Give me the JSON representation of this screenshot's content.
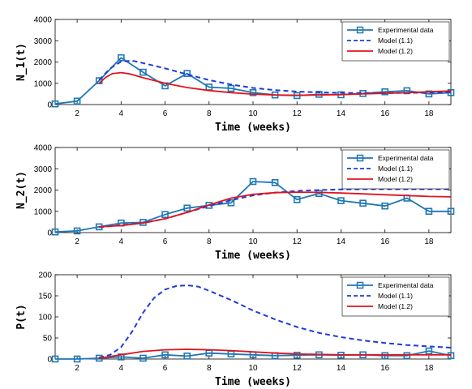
{
  "chart_data": [
    {
      "type": "line",
      "xlabel": "Time (weeks)",
      "ylabel": "N_1(t)",
      "xlim": [
        1,
        19
      ],
      "ylim": [
        0,
        4000
      ],
      "x_ticks": [
        2,
        4,
        6,
        8,
        10,
        12,
        14,
        16,
        18
      ],
      "y_ticks": [
        0,
        1000,
        2000,
        3000,
        4000
      ],
      "legend_position": "top-right",
      "grid": false,
      "series": [
        {
          "name": "Experimental data",
          "color": "#1f77b4",
          "style": "solid-square-markers",
          "x": [
            1,
            2,
            3,
            4,
            5,
            6,
            7,
            8,
            9,
            10,
            11,
            12,
            13,
            14,
            15,
            16,
            17,
            18,
            19
          ],
          "y": [
            30,
            160,
            1120,
            2200,
            1520,
            880,
            1460,
            820,
            760,
            560,
            450,
            420,
            480,
            460,
            520,
            600,
            650,
            500,
            560
          ]
        },
        {
          "name": "Model (1.1)",
          "color": "#1f3cd6",
          "style": "dashed",
          "x": [
            3,
            3.5,
            4,
            4.5,
            5,
            6,
            7,
            8,
            9,
            10,
            11,
            12,
            13,
            14,
            15,
            16,
            17,
            18,
            19
          ],
          "y": [
            1150,
            1700,
            2020,
            2060,
            1950,
            1700,
            1420,
            1150,
            940,
            780,
            680,
            610,
            570,
            550,
            540,
            540,
            550,
            560,
            580
          ]
        },
        {
          "name": "Model (1.2)",
          "color": "#e0141e",
          "style": "solid",
          "x": [
            3,
            3.3,
            3.6,
            4,
            4.4,
            5,
            6,
            7,
            8,
            9,
            10,
            11,
            12,
            13,
            14,
            15,
            16,
            17,
            18,
            19
          ],
          "y": [
            1000,
            1280,
            1450,
            1500,
            1440,
            1260,
            1000,
            800,
            660,
            560,
            490,
            450,
            440,
            450,
            470,
            500,
            530,
            560,
            600,
            640
          ]
        }
      ]
    },
    {
      "type": "line",
      "xlabel": "Time (weeks)",
      "ylabel": "N_2(t)",
      "xlim": [
        1,
        19
      ],
      "ylim": [
        0,
        4000
      ],
      "x_ticks": [
        2,
        4,
        6,
        8,
        10,
        12,
        14,
        16,
        18
      ],
      "y_ticks": [
        0,
        1000,
        2000,
        3000,
        4000
      ],
      "legend_position": "top-right",
      "grid": false,
      "series": [
        {
          "name": "Experimental data",
          "color": "#1f77b4",
          "style": "solid-square-markers",
          "x": [
            1,
            2,
            3,
            4,
            5,
            6,
            7,
            8,
            9,
            10,
            11,
            12,
            13,
            14,
            15,
            16,
            17,
            18,
            19
          ],
          "y": [
            30,
            80,
            270,
            450,
            480,
            850,
            1150,
            1280,
            1400,
            2400,
            2350,
            1550,
            1840,
            1500,
            1380,
            1250,
            1620,
            1000,
            1000
          ]
        },
        {
          "name": "Model (1.1)",
          "color": "#1f3cd6",
          "style": "dashed",
          "x": [
            3,
            4,
            5,
            6,
            7,
            8,
            9,
            10,
            11,
            12,
            13,
            14,
            15,
            16,
            17,
            18,
            19
          ],
          "y": [
            250,
            350,
            450,
            650,
            950,
            1250,
            1520,
            1750,
            1880,
            1960,
            2000,
            2030,
            2040,
            2040,
            2040,
            2040,
            2040
          ]
        },
        {
          "name": "Model (1.2)",
          "color": "#e0141e",
          "style": "solid",
          "x": [
            3,
            4,
            5,
            6,
            7,
            8,
            9,
            10,
            11,
            12,
            13,
            14,
            15,
            16,
            17,
            18,
            19
          ],
          "y": [
            270,
            330,
            450,
            650,
            950,
            1300,
            1620,
            1800,
            1880,
            1900,
            1890,
            1860,
            1820,
            1780,
            1740,
            1700,
            1680
          ]
        }
      ]
    },
    {
      "type": "line",
      "xlabel": "Time (weeks)",
      "ylabel": "P(t)",
      "xlim": [
        1,
        19
      ],
      "ylim": [
        0,
        200
      ],
      "x_ticks": [
        2,
        4,
        6,
        8,
        10,
        12,
        14,
        16,
        18
      ],
      "y_ticks": [
        0,
        50,
        100,
        150,
        200
      ],
      "legend_position": "top-right",
      "grid": false,
      "series": [
        {
          "name": "Experimental data",
          "color": "#1f77b4",
          "style": "solid-square-markers",
          "x": [
            1,
            2,
            3,
            4,
            5,
            6,
            7,
            8,
            9,
            10,
            11,
            12,
            13,
            14,
            15,
            16,
            17,
            18,
            19
          ],
          "y": [
            0,
            0,
            2,
            5,
            2,
            10,
            7,
            14,
            12,
            10,
            8,
            9,
            10,
            9,
            10,
            8,
            8,
            19,
            8
          ]
        },
        {
          "name": "Model (1.1)",
          "color": "#1f3cd6",
          "style": "dashed",
          "x": [
            3,
            3.5,
            4,
            4.5,
            5,
            5.5,
            6,
            6.5,
            7,
            7.5,
            8,
            9,
            10,
            11,
            12,
            13,
            14,
            15,
            16,
            17,
            18,
            19
          ],
          "y": [
            3,
            10,
            28,
            65,
            110,
            145,
            165,
            173,
            175,
            172,
            162,
            140,
            115,
            94,
            76,
            62,
            52,
            44,
            38,
            33,
            30,
            27
          ]
        },
        {
          "name": "Model (1.2)",
          "color": "#e0141e",
          "style": "solid",
          "x": [
            3,
            4,
            5,
            6,
            7,
            8,
            9,
            10,
            11,
            12,
            13,
            14,
            15,
            16,
            17,
            18,
            19
          ],
          "y": [
            2,
            10,
            18,
            22,
            23,
            22,
            20,
            17,
            14,
            12,
            11,
            10,
            10,
            10,
            10,
            10,
            10
          ]
        }
      ]
    }
  ]
}
